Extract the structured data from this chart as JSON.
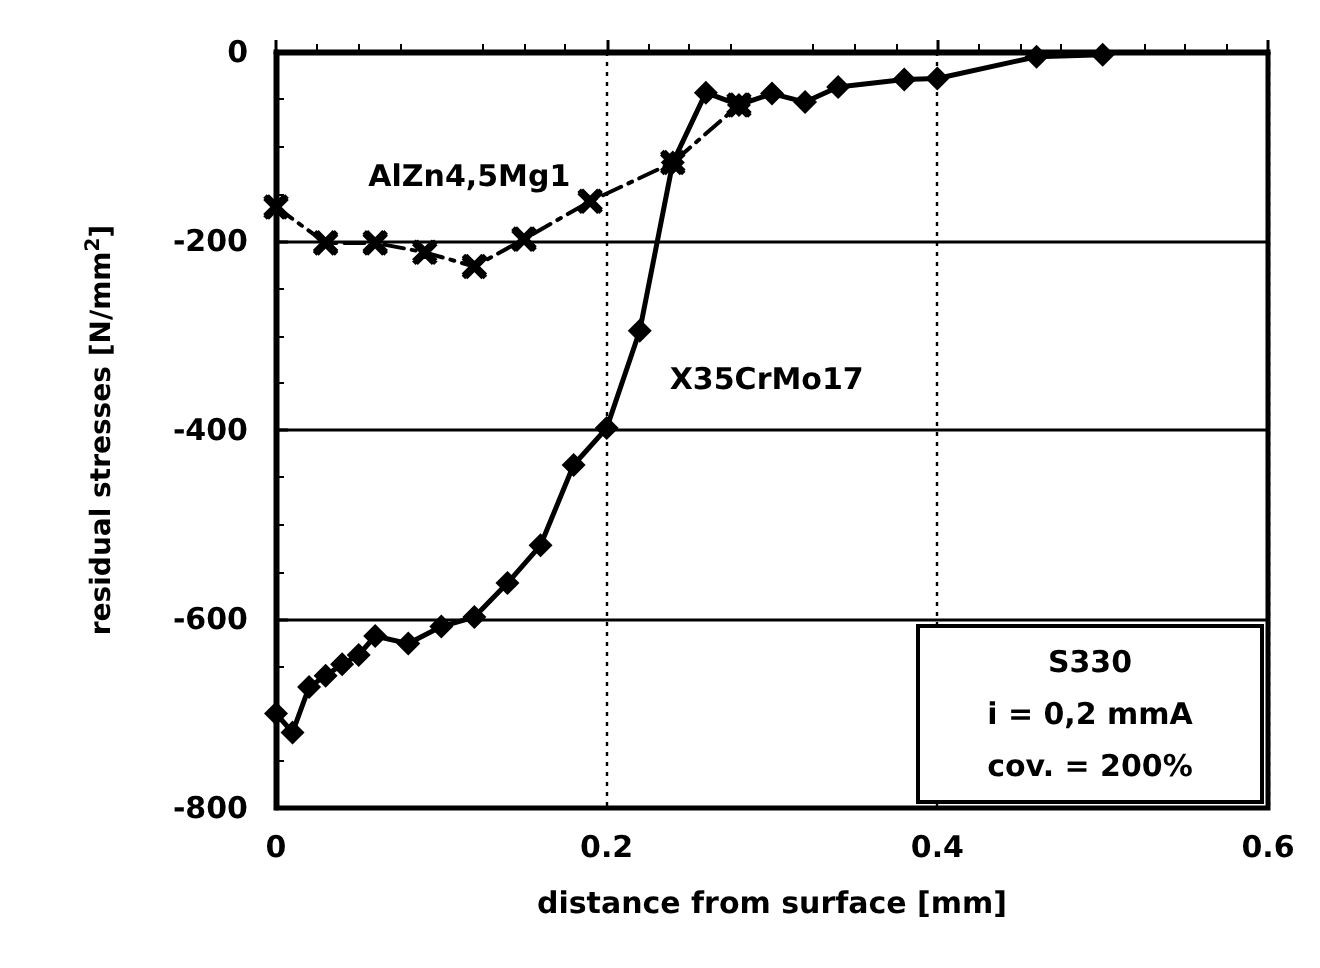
{
  "chart_data": {
    "type": "line",
    "xlabel": "distance from surface [mm]",
    "ylabel": "residual stresses [N/mm$^{2}$]",
    "xlim": [
      0,
      0.6
    ],
    "xticks": [
      0,
      0.2,
      0.4,
      0.6
    ],
    "ylim": [
      -800,
      0
    ],
    "yticks": [
      -800,
      -600,
      -400,
      -200,
      0
    ],
    "grid": true,
    "legend": false,
    "annotations": [
      "S330",
      "i = 0,2 mmA",
      "cov. = 200%"
    ],
    "series": [
      {
        "name": "X35CrMo17",
        "color": "#000000",
        "marker": "diamond",
        "line_style": "solid",
        "x": [
          0,
          0.01,
          0.02,
          0.03,
          0.04,
          0.05,
          0.06,
          0.08,
          0.1,
          0.12,
          0.14,
          0.16,
          0.18,
          0.2,
          0.22,
          0.24,
          0.26,
          0.28,
          0.3,
          0.32,
          0.34,
          0.38,
          0.4,
          0.46,
          0.5
        ],
        "values": [
          -700,
          -720,
          -672,
          -660,
          -648,
          -638,
          -618,
          -626,
          -608,
          -598,
          -562,
          -522,
          -437,
          -398,
          -295,
          -117,
          -43,
          -56,
          -44,
          -53,
          -37,
          -29,
          -28,
          -5,
          -3
        ]
      },
      {
        "name": "AlZn4,5Mg1",
        "color": "#000000",
        "marker": "cross",
        "line_style": "dashed",
        "x": [
          0,
          0.03,
          0.06,
          0.09,
          0.12,
          0.15,
          0.19,
          0.24,
          0.28
        ],
        "values": [
          -164,
          -202,
          -202,
          -212,
          -227,
          -198,
          -158,
          -117,
          -56
        ]
      }
    ]
  }
}
